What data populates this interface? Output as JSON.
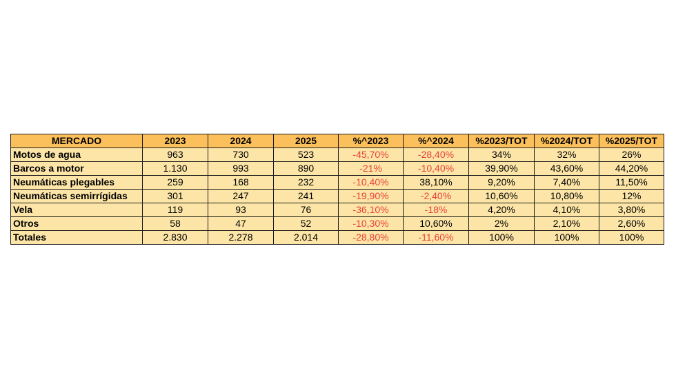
{
  "table": {
    "headers": [
      "MERCADO",
      "2023",
      "2024",
      "2025",
      "%^2023",
      "%^2024",
      "%2023/TOT",
      "%2024/TOT",
      "%2025/TOT"
    ],
    "rows": [
      [
        "Motos de agua",
        "963",
        "730",
        "523",
        "-45,70%",
        "-28,40%",
        "34%",
        "32%",
        "26%"
      ],
      [
        "Barcos a motor",
        "1.130",
        "993",
        "890",
        "-21%",
        "-10,40%",
        "39,90%",
        "43,60%",
        "44,20%"
      ],
      [
        "Neumáticas plegables",
        "259",
        "168",
        "232",
        "-10,40%",
        "38,10%",
        "9,20%",
        "7,40%",
        "11,50%"
      ],
      [
        "Neumáticas semirrígidas",
        "301",
        "247",
        "241",
        "-19,90%",
        "-2,40%",
        "10,60%",
        "10,80%",
        "12%"
      ],
      [
        "Vela",
        "119",
        "93",
        "76",
        "-36,10%",
        "-18%",
        "4,20%",
        "4,10%",
        "3,80%"
      ],
      [
        "Otros",
        "58",
        "47",
        "52",
        "-10,30%",
        "10,60%",
        "2%",
        "2,10%",
        "2,60%"
      ],
      [
        "Totales",
        "2.830",
        "2.278",
        "2.014",
        "-28,80%",
        "-11,60%",
        "100%",
        "100%",
        "100%"
      ]
    ]
  },
  "colors": {
    "header_bg": "#fbc05b",
    "row_bg": "#fce5a6",
    "negative_text": "#e8413a",
    "border": "#1a1a1a"
  }
}
